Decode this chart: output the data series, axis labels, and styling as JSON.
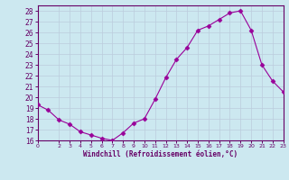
{
  "x": [
    0,
    1,
    2,
    3,
    4,
    5,
    6,
    7,
    8,
    9,
    10,
    11,
    12,
    13,
    14,
    15,
    16,
    17,
    18,
    19,
    20,
    21,
    22,
    23
  ],
  "y": [
    19.3,
    18.8,
    17.9,
    17.5,
    16.8,
    16.5,
    16.2,
    16.0,
    16.7,
    17.6,
    18.0,
    19.8,
    21.8,
    23.5,
    24.6,
    26.2,
    26.6,
    27.2,
    27.8,
    28.0,
    26.2,
    23.0,
    21.5,
    20.5
  ],
  "line_color": "#990099",
  "marker": "D",
  "marker_size": 2.5,
  "bg_color": "#cce8f0",
  "grid_color": "#bbccdd",
  "axis_color": "#660066",
  "tick_color": "#660066",
  "xlabel": "Windchill (Refroidissement éolien,°C)",
  "xlim": [
    0,
    23
  ],
  "ylim": [
    16,
    28.5
  ],
  "yticks": [
    16,
    17,
    18,
    19,
    20,
    21,
    22,
    23,
    24,
    25,
    26,
    27,
    28
  ],
  "xticks": [
    0,
    2,
    3,
    4,
    5,
    6,
    7,
    8,
    9,
    10,
    11,
    12,
    13,
    14,
    15,
    16,
    17,
    18,
    19,
    20,
    21,
    22,
    23
  ]
}
